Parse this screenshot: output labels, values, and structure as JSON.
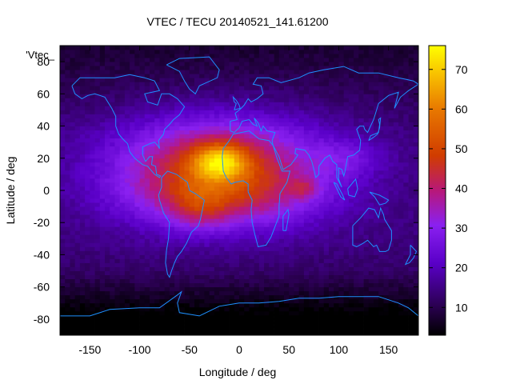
{
  "chart_data": {
    "type": "heatmap",
    "title": "VTEC / TECU 20140521_141.61200",
    "xlabel": "Longitude / deg",
    "ylabel": "Latitude / deg",
    "series_label": "'Vtec_",
    "xlim": [
      -180,
      180
    ],
    "ylim": [
      -90,
      90
    ],
    "x_ticks": [
      -150,
      -100,
      -50,
      0,
      50,
      100,
      150
    ],
    "y_ticks": [
      -80,
      -60,
      -40,
      -20,
      0,
      20,
      40,
      60,
      80
    ],
    "colorbar": {
      "range": [
        3,
        76
      ],
      "ticks": [
        10,
        20,
        30,
        40,
        50,
        60,
        70
      ],
      "palette": "black-blue-purple-red-orange-yellow"
    },
    "coastline_color": "#1e90ff",
    "grid_resolution_deg": {
      "lon": 5,
      "lat": 2.5
    },
    "field_description": "Vertical total electron content (TECU) on a lon/lat grid: peak ~75 TECU near lon -20, lat 18; equatorial anomaly band of 40-55 TECU over Atlantic/Americas/Africa; 15-25 TECU mid-latitudes; <8 TECU near Antarctica",
    "field_model": {
      "background": [
        {
          "lon": -20,
          "lat": 15,
          "amp": 32,
          "sig_lon": 75,
          "sig_lat": 22
        },
        {
          "lon": -15,
          "lat": -5,
          "amp": 12,
          "sig_lon": 70,
          "sig_lat": 14
        }
      ],
      "peaks": [
        {
          "lon": -20,
          "lat": 18,
          "amp": 28,
          "sig_lon": 20,
          "sig_lat": 8
        },
        {
          "lon": -40,
          "lat": -10,
          "amp": 10,
          "sig_lon": 20,
          "sig_lat": 10
        },
        {
          "lon": 65,
          "lat": 1,
          "amp": 10,
          "sig_lon": 10,
          "sig_lat": 4
        },
        {
          "lon": 110,
          "lat": 20,
          "amp": 7,
          "sig_lon": 25,
          "sig_lat": 8
        }
      ],
      "base": 14,
      "south_polar_drop": {
        "lat_start": -50,
        "per_deg": 0.25
      },
      "min": 3,
      "max": 76
    }
  }
}
